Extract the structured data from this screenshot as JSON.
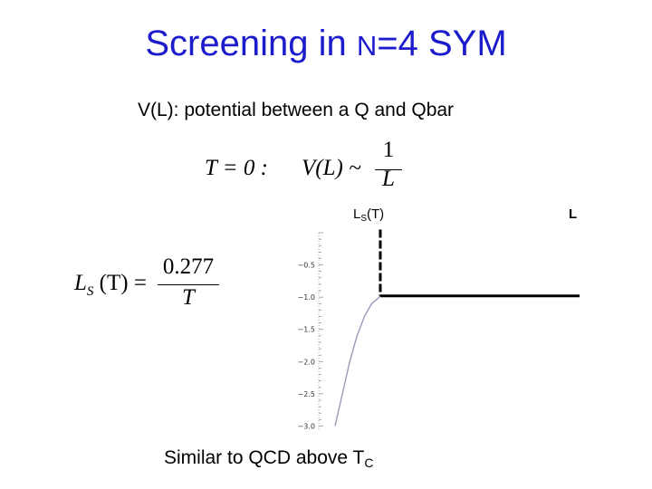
{
  "title": {
    "prefix": "Screening in ",
    "n_symbol": "N",
    "suffix": "=4 SYM"
  },
  "subtitle": "V(L): potential between a Q and Qbar",
  "formulas": {
    "t0": {
      "lhs": "T = 0 :",
      "v_of_l": "V(L) ~",
      "numerator": "1",
      "denominator": "L"
    },
    "ls": {
      "lhs": "L",
      "lhs_sub": "S",
      "lhs_arg": "(T) =",
      "numerator": "0.277",
      "denominator": "T"
    }
  },
  "labels": {
    "ls_main": "L",
    "ls_sub": "S",
    "ls_arg": "(T)",
    "l_axis": "L"
  },
  "caption": {
    "text": "Similar to QCD above T",
    "sub": "C"
  },
  "chart_data": {
    "type": "line",
    "y_ticks": [
      -0.5,
      -1.0,
      -1.5,
      -2.0,
      -2.5,
      -3.0
    ],
    "y_tick_labels": [
      "−0.5",
      "−1.0",
      "−1.5",
      "−2.0",
      "−2.5",
      "−3.0"
    ],
    "ylim": [
      -3.05,
      0
    ],
    "xlim": [
      0,
      1
    ],
    "grid": false,
    "curve": {
      "x": [
        0.0,
        0.03,
        0.06,
        0.09,
        0.12,
        0.15,
        0.175,
        0.185
      ],
      "y": [
        -3.0,
        -2.5,
        -2.0,
        -1.6,
        -1.3,
        -1.1,
        -1.02,
        -0.98
      ]
    },
    "screening_line": {
      "y": -0.98,
      "x_start": 0.185,
      "x_end": 1.0
    },
    "ls_marker": {
      "x": 0.185,
      "y_top": 0.05,
      "y_bottom": -0.98
    }
  },
  "colors": {
    "title": "#1c1ccc",
    "curve": "#9a9ab8",
    "line": "#000000"
  }
}
